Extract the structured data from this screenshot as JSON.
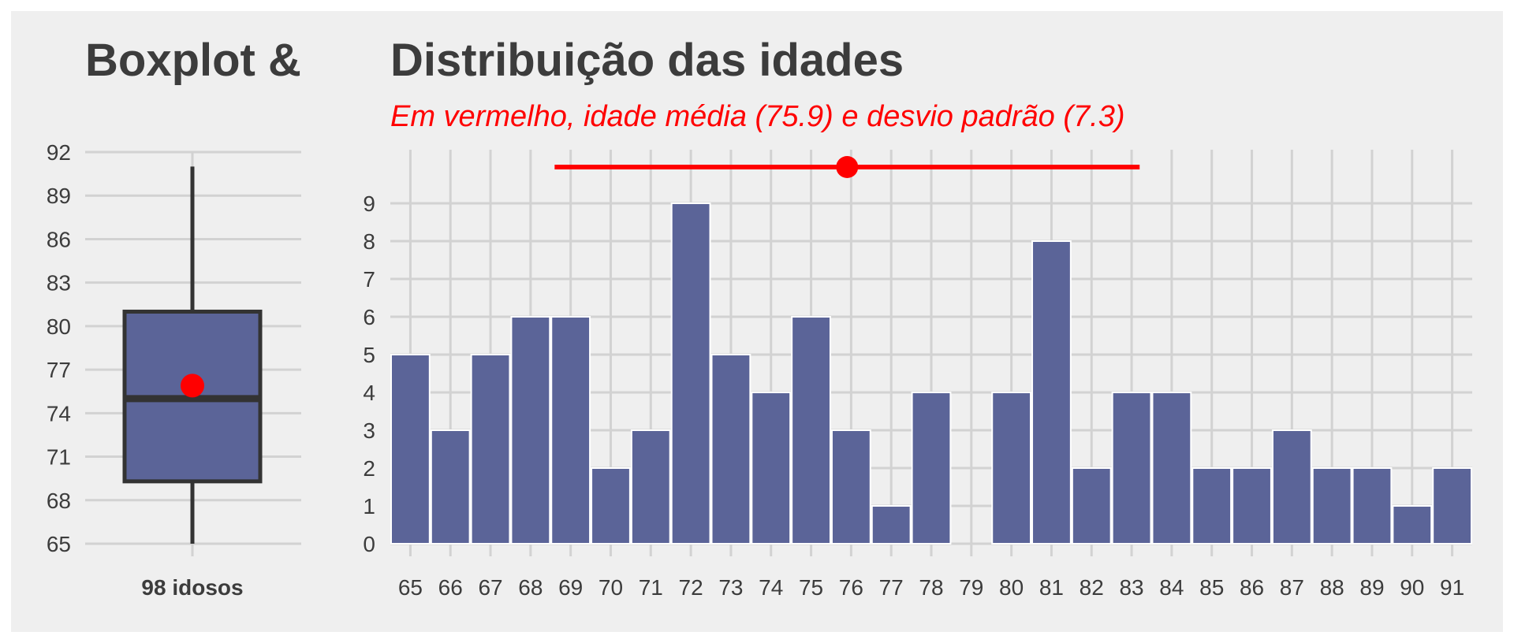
{
  "colors": {
    "bar": "#5b6498",
    "accent": "#ff0000",
    "panel": "#efefef",
    "grid": "#d2d2d2",
    "text": "#3c3c3c"
  },
  "chart_data": [
    {
      "type": "boxplot",
      "title": "Boxplot &",
      "xlabel": "98 idosos",
      "y_ticks": [
        65,
        68,
        71,
        74,
        77,
        80,
        83,
        86,
        89,
        92
      ],
      "ylim": [
        65,
        92
      ],
      "whisker_low": 65,
      "q1": 69.3,
      "median": 75,
      "q3": 81,
      "whisker_high": 91,
      "mean": 75.9
    },
    {
      "type": "bar",
      "title": "Distribuição das idades",
      "subtitle": "Em vermelho, idade média (75.9) e desvio padrão (7.3)",
      "categories": [
        65,
        66,
        67,
        68,
        69,
        70,
        71,
        72,
        73,
        74,
        75,
        76,
        77,
        78,
        79,
        80,
        81,
        82,
        83,
        84,
        85,
        86,
        87,
        88,
        89,
        90,
        91
      ],
      "values": [
        5,
        3,
        5,
        6,
        6,
        2,
        3,
        9,
        5,
        4,
        6,
        3,
        1,
        4,
        0,
        4,
        8,
        2,
        4,
        4,
        2,
        2,
        3,
        2,
        2,
        1,
        2
      ],
      "y_ticks": [
        0,
        1,
        2,
        3,
        4,
        5,
        6,
        7,
        8,
        9
      ],
      "ylim": [
        0,
        10
      ],
      "mean": 75.9,
      "sd": 7.3,
      "grid": true
    }
  ]
}
